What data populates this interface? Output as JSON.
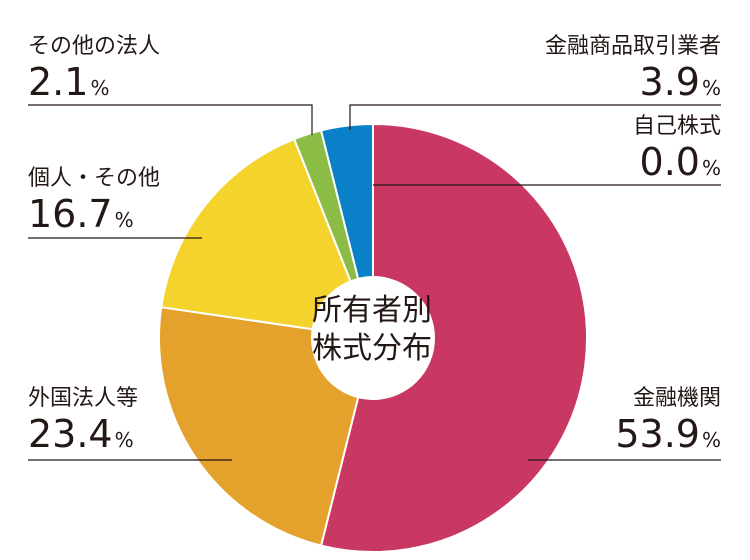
{
  "chart_data": {
    "type": "pie",
    "donut": true,
    "center_label": [
      "所有者別",
      "株式分布"
    ],
    "start": "top",
    "direction": "clockwise",
    "slices": [
      {
        "label": "金融機関",
        "value": 53.9,
        "color": "#c93862"
      },
      {
        "label": "外国法人等",
        "value": 23.4,
        "color": "#e4a12c"
      },
      {
        "label": "個人・その他",
        "value": 16.7,
        "color": "#f5d32d"
      },
      {
        "label": "その他の法人",
        "value": 2.1,
        "color": "#8bbd46"
      },
      {
        "label": "金融商品取引業者",
        "value": 3.9,
        "color": "#0a80c8"
      },
      {
        "label": "自己株式",
        "value": 0.0,
        "color": "#ffffff"
      }
    ],
    "value_unit": "%",
    "legend": "callouts"
  },
  "labels": {
    "other_corp": {
      "name": "その他の法人",
      "value": "2.1"
    },
    "securities": {
      "name": "金融商品取引業者",
      "value": "3.9"
    },
    "treasury": {
      "name": "自己株式",
      "value": "0.0"
    },
    "individuals": {
      "name": "個人・その他",
      "value": "16.7"
    },
    "foreign": {
      "name": "外国法人等",
      "value": "23.4"
    },
    "financial": {
      "name": "金融機関",
      "value": "53.9"
    },
    "pct_symbol": "%"
  },
  "center": {
    "line1": "所有者別",
    "line2": "株式分布"
  }
}
